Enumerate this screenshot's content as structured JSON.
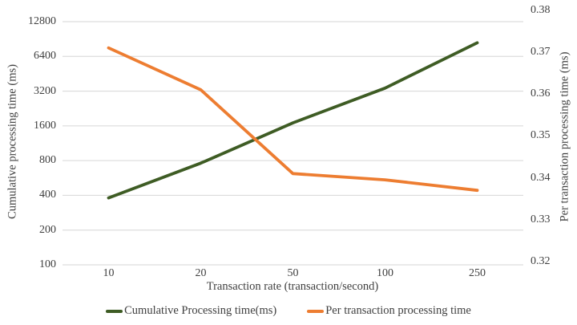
{
  "chart_data": {
    "type": "line",
    "categories": [
      "10",
      "20",
      "50",
      "100",
      "250"
    ],
    "xlabel": "Transaction rate (transaction/second)",
    "left_axis": {
      "label": "Cumulative processing time (ms)",
      "scale": "log2",
      "ticks": [
        "12800",
        "6400",
        "3200",
        "1600",
        "800",
        "400",
        "200",
        "100"
      ],
      "min": 100,
      "max": 12800
    },
    "right_axis": {
      "label": "Per transaction processing time (ms)",
      "scale": "linear",
      "ticks": [
        "0.38",
        "0.37",
        "0.36",
        "0.35",
        "0.34",
        "0.33",
        "0.32"
      ],
      "min": 0.32,
      "max": 0.38
    },
    "series": [
      {
        "name": "Cumulative Processing time(ms)",
        "axis": "left",
        "color": "#3e5c24",
        "values": [
          380,
          760,
          1700,
          3400,
          8400
        ]
      },
      {
        "name": "Per transaction processing time",
        "axis": "right",
        "color": "#ed7d31",
        "values": [
          0.371,
          0.361,
          0.341,
          0.3395,
          0.337
        ]
      }
    ],
    "grid": true,
    "gridline_color": "#d6d6d6",
    "legend_position": "bottom"
  }
}
